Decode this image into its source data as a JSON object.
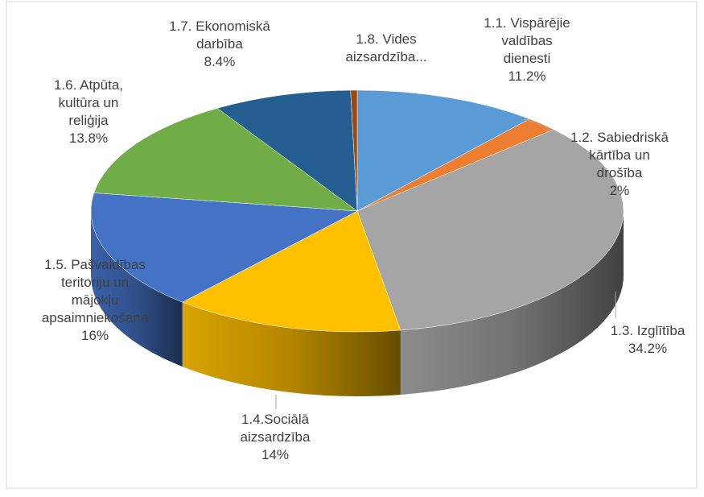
{
  "chart_data": {
    "type": "pie3d",
    "categories": [
      "1.1. Vispārējie valdības dienesti",
      "1.2. Sabiedriskā kārtība un drošība",
      "1.3. Izglītība",
      "1.4.Sociālā aizsardzība",
      "1.5. Pašvaldības teritoriju un mājokļu apsaimniekošana",
      "1.6. Atpūta, kultūra un reliģija",
      "1.7. Ekonomiskā darbība",
      "1.8. Vides aizsardzība..."
    ],
    "values": [
      11.2,
      2,
      34.2,
      14,
      16,
      13.8,
      8.4,
      0.4
    ],
    "value_labels": [
      "11.2%",
      "2%",
      "34.2%",
      "14%",
      "16%",
      "13.8%",
      "8.4%",
      null
    ],
    "colors": [
      "#5b9bd5",
      "#ed7d31",
      "#a5a5a5",
      "#ffc000",
      "#4472c4",
      "#70ad47",
      "#255e91",
      "#9e480e"
    ]
  }
}
